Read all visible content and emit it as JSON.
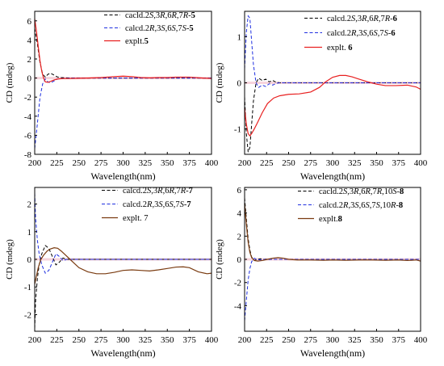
{
  "figure": {
    "colors": {
      "black": "#000000",
      "blue": "#1f2fe0",
      "red": "#e82020",
      "brown": "#7a3b10",
      "axis": "#000000"
    }
  },
  "chart_data": [
    {
      "id": "A",
      "type": "line",
      "xlabel": "Wavelength(nm)",
      "ylabel": "CD (mdeg)",
      "xlim": [
        200,
        400
      ],
      "ylim": [
        -8,
        7
      ],
      "xticks": [
        "200",
        "225",
        "250",
        "275",
        "300",
        "325",
        "350",
        "375",
        "400"
      ],
      "yticks": [
        "-8",
        "-6",
        "-4",
        "-2",
        "0",
        "2",
        "4",
        "6"
      ],
      "legend": "top-right",
      "series": [
        {
          "name": "cacld.2S,3R,6R,7R-5",
          "name_parts": [
            [
              "cacld.2",
              ""
            ],
            [
              "S",
              "i"
            ],
            [
              ",3",
              ""
            ],
            [
              "R",
              "i"
            ],
            [
              ",6",
              ""
            ],
            [
              "R",
              "i"
            ],
            [
              ",7",
              ""
            ],
            [
              "R",
              "i"
            ],
            [
              "-",
              ""
            ],
            [
              "5",
              "b"
            ]
          ],
          "color": "#000000",
          "style": "dashed",
          "x": [
            200,
            203,
            206,
            209,
            212,
            215,
            218,
            222,
            226,
            230,
            240,
            260,
            280,
            300,
            320,
            340,
            360,
            380,
            400
          ],
          "y": [
            5.2,
            3.6,
            1.6,
            0.4,
            0.1,
            0.4,
            0.5,
            0.3,
            0.1,
            0.05,
            0,
            0,
            0,
            0,
            0,
            0,
            0,
            0,
            0
          ]
        },
        {
          "name": "calcd.2R,3S,6S,7S-5",
          "name_parts": [
            [
              "calcd.2",
              ""
            ],
            [
              "R",
              "i"
            ],
            [
              ",3",
              ""
            ],
            [
              "S",
              "i"
            ],
            [
              ",6",
              ""
            ],
            [
              "S",
              "i"
            ],
            [
              ",7",
              ""
            ],
            [
              "S",
              "i"
            ],
            [
              "-",
              ""
            ],
            [
              "5",
              "b"
            ]
          ],
          "color": "#1f2fe0",
          "style": "dashed",
          "x": [
            200,
            203,
            206,
            209,
            212,
            215,
            218,
            222,
            226,
            230,
            240,
            260,
            280,
            300,
            320,
            340,
            360,
            380,
            400
          ],
          "y": [
            -7.4,
            -4.8,
            -2.0,
            -0.6,
            -0.1,
            -0.4,
            -0.5,
            -0.3,
            -0.1,
            -0.05,
            0,
            0,
            0,
            0,
            0,
            0,
            0,
            0,
            0
          ]
        },
        {
          "name": "explt.5",
          "name_parts": [
            [
              "explt.",
              ""
            ],
            [
              "5",
              "b"
            ]
          ],
          "color": "#e82020",
          "style": "solid",
          "x": [
            200,
            202,
            204,
            206,
            208,
            210,
            212,
            215,
            218,
            222,
            226,
            232,
            240,
            250,
            260,
            275,
            290,
            300,
            310,
            320,
            330,
            340,
            350,
            360,
            375,
            390,
            400
          ],
          "y": [
            6.2,
            4.9,
            3.3,
            1.8,
            0.7,
            0.0,
            -0.4,
            -0.45,
            -0.35,
            -0.2,
            -0.1,
            -0.05,
            -0.05,
            -0.02,
            0.0,
            0.05,
            0.15,
            0.2,
            0.15,
            0.05,
            0.02,
            0.05,
            0.05,
            0.1,
            0.1,
            0.0,
            -0.05
          ]
        }
      ]
    },
    {
      "id": "B",
      "type": "line",
      "xlabel": "Wavelength(nm)",
      "ylabel": "CD (mdeg)",
      "xlim": [
        200,
        400
      ],
      "ylim": [
        -1.55,
        1.55
      ],
      "xticks": [
        "200",
        "225",
        "250",
        "275",
        "300",
        "325",
        "350",
        "375",
        "400"
      ],
      "yticks": [
        "-1",
        "0",
        "1"
      ],
      "legend": "top-right",
      "series": [
        {
          "name": "calcd.2S,3R,6R,7R-6",
          "name_parts": [
            [
              "calcd.2",
              ""
            ],
            [
              "S",
              "i"
            ],
            [
              ",3",
              ""
            ],
            [
              "R",
              "i"
            ],
            [
              ",6",
              ""
            ],
            [
              "R",
              "i"
            ],
            [
              ",7",
              ""
            ],
            [
              "R",
              "i"
            ],
            [
              "-",
              ""
            ],
            [
              "6",
              "b"
            ]
          ],
          "color": "#000000",
          "style": "dashed",
          "x": [
            200,
            202,
            204,
            206,
            208,
            210,
            213,
            216,
            220,
            224,
            228,
            232,
            236,
            240,
            260,
            300,
            340,
            400
          ],
          "y": [
            -0.3,
            -1.1,
            -1.5,
            -1.4,
            -0.9,
            -0.4,
            0.0,
            0.1,
            0.05,
            0.08,
            0.02,
            0.05,
            0.01,
            0,
            0,
            0,
            0,
            0
          ]
        },
        {
          "name": "calcd.2R,3S,6S,7S-6",
          "name_parts": [
            [
              "calcd.2",
              ""
            ],
            [
              "R",
              "i"
            ],
            [
              ",3",
              ""
            ],
            [
              "S",
              "i"
            ],
            [
              ",6",
              ""
            ],
            [
              "S",
              "i"
            ],
            [
              ",7",
              ""
            ],
            [
              "S",
              "i"
            ],
            [
              "-",
              ""
            ],
            [
              "6",
              "b"
            ]
          ],
          "color": "#1f2fe0",
          "style": "dashed",
          "x": [
            200,
            202,
            204,
            206,
            208,
            210,
            213,
            216,
            220,
            224,
            228,
            232,
            236,
            240,
            260,
            300,
            340,
            400
          ],
          "y": [
            0.3,
            1.1,
            1.45,
            1.4,
            0.9,
            0.4,
            0.0,
            -0.1,
            -0.05,
            -0.08,
            -0.02,
            -0.05,
            -0.01,
            0,
            0,
            0,
            0,
            0
          ]
        },
        {
          "name": "explt. 6",
          "name_parts": [
            [
              "explt. ",
              ""
            ],
            [
              "6",
              "b"
            ]
          ],
          "color": "#e82020",
          "style": "solid",
          "x": [
            200,
            202,
            204,
            206,
            208,
            211,
            215,
            220,
            226,
            233,
            240,
            250,
            262,
            275,
            285,
            292,
            300,
            308,
            315,
            322,
            330,
            340,
            350,
            360,
            372,
            385,
            395,
            400
          ],
          "y": [
            -0.55,
            -0.9,
            -1.1,
            -1.15,
            -1.1,
            -1.0,
            -0.85,
            -0.65,
            -0.45,
            -0.33,
            -0.28,
            -0.25,
            -0.24,
            -0.2,
            -0.1,
            0.02,
            0.12,
            0.16,
            0.16,
            0.13,
            0.08,
            0.02,
            -0.03,
            -0.06,
            -0.06,
            -0.05,
            -0.09,
            -0.14
          ]
        }
      ]
    },
    {
      "id": "C",
      "type": "line",
      "xlabel": "Wavelength(nm)",
      "ylabel": "CD (mdeg)",
      "xlim": [
        200,
        400
      ],
      "ylim": [
        -2.6,
        2.6
      ],
      "xticks": [
        "200",
        "225",
        "250",
        "275",
        "300",
        "325",
        "350",
        "375",
        "400"
      ],
      "yticks": [
        "-2",
        "-1",
        "0",
        "1",
        "2"
      ],
      "legend": "top-right",
      "series": [
        {
          "name": "calcd.2S,3R,6R,7R-7",
          "name_parts": [
            [
              "calcd.2",
              ""
            ],
            [
              "S",
              "i"
            ],
            [
              ",3",
              ""
            ],
            [
              "R",
              "i"
            ],
            [
              ",6",
              ""
            ],
            [
              "R",
              "i"
            ],
            [
              ",7",
              ""
            ],
            [
              "R",
              "i"
            ],
            [
              "-",
              ""
            ],
            [
              "7",
              "b"
            ]
          ],
          "color": "#000000",
          "style": "dashed",
          "x": [
            200,
            201,
            203,
            205,
            208,
            212,
            216,
            220,
            224,
            228,
            232,
            236,
            240,
            250,
            300,
            350,
            400
          ],
          "y": [
            -2.5,
            -1.5,
            -0.7,
            -0.2,
            0.2,
            0.5,
            0.4,
            0.1,
            -0.2,
            -0.1,
            0.05,
            0.0,
            0.0,
            0,
            0,
            0,
            0
          ]
        },
        {
          "name": "calcd.2R,3S,6S,7S-7",
          "name_parts": [
            [
              "calcd.2",
              ""
            ],
            [
              "R",
              "i"
            ],
            [
              ",3",
              ""
            ],
            [
              "S",
              "i"
            ],
            [
              ",6",
              ""
            ],
            [
              "S",
              "i"
            ],
            [
              ",7",
              ""
            ],
            [
              "S",
              "i"
            ],
            [
              "-",
              ""
            ],
            [
              "7",
              "b"
            ]
          ],
          "color": "#1f2fe0",
          "style": "dashed",
          "x": [
            200,
            201,
            203,
            205,
            208,
            212,
            216,
            220,
            224,
            228,
            232,
            236,
            240,
            250,
            300,
            350,
            400
          ],
          "y": [
            2.4,
            1.5,
            0.7,
            0.2,
            -0.2,
            -0.5,
            -0.4,
            -0.1,
            0.2,
            0.1,
            -0.05,
            0.0,
            0.0,
            0,
            0,
            0,
            0
          ]
        },
        {
          "name": "explt. 7",
          "name_parts": [
            [
              "explt. 7",
              ""
            ]
          ],
          "color": "#7a3b10",
          "style": "solid",
          "x": [
            200,
            202,
            204,
            207,
            210,
            214,
            218,
            222,
            226,
            230,
            235,
            240,
            245,
            250,
            260,
            270,
            280,
            290,
            300,
            310,
            320,
            330,
            340,
            350,
            360,
            368,
            375,
            385,
            395,
            400
          ],
          "y": [
            -0.9,
            -0.6,
            -0.3,
            0.0,
            0.15,
            0.3,
            0.38,
            0.42,
            0.4,
            0.3,
            0.15,
            0.0,
            -0.15,
            -0.3,
            -0.45,
            -0.52,
            -0.52,
            -0.47,
            -0.4,
            -0.38,
            -0.4,
            -0.42,
            -0.38,
            -0.33,
            -0.28,
            -0.27,
            -0.3,
            -0.45,
            -0.52,
            -0.5
          ]
        }
      ]
    },
    {
      "id": "D",
      "type": "line",
      "xlabel": "Wavelength(nm)",
      "ylabel": "CD (mdeg)",
      "xlim": [
        200,
        400
      ],
      "ylim": [
        -6.2,
        6.2
      ],
      "xticks": [
        "200",
        "225",
        "250",
        "275",
        "300",
        "325",
        "350",
        "375",
        "400"
      ],
      "yticks": [
        "-4",
        "-2",
        "0",
        "2",
        "4",
        "6"
      ],
      "legend": "top-right",
      "series": [
        {
          "name": "cacld.2S,3R,6R,7R,10S-8",
          "name_parts": [
            [
              "cacld.2",
              ""
            ],
            [
              "S",
              "i"
            ],
            [
              ",3",
              ""
            ],
            [
              "R",
              "i"
            ],
            [
              ",6",
              ""
            ],
            [
              "R",
              "i"
            ],
            [
              ",7",
              ""
            ],
            [
              "R",
              "i"
            ],
            [
              ",10",
              ""
            ],
            [
              "S",
              "i"
            ],
            [
              "-",
              ""
            ],
            [
              "8",
              "b"
            ]
          ],
          "color": "#000000",
          "style": "dashed",
          "x": [
            200,
            202,
            204,
            206,
            208,
            211,
            214,
            218,
            222,
            226,
            230,
            240,
            260,
            300,
            350,
            400
          ],
          "y": [
            5.3,
            3.5,
            1.8,
            0.8,
            0.2,
            -0.1,
            0.0,
            0.05,
            0.0,
            0.02,
            0,
            0,
            0,
            0,
            0,
            0
          ]
        },
        {
          "name": "calcd.2R,3S,6S,7S,10R-8",
          "name_parts": [
            [
              "calcd.2",
              ""
            ],
            [
              "R",
              "i"
            ],
            [
              ",3",
              ""
            ],
            [
              "S",
              "i"
            ],
            [
              ",6",
              ""
            ],
            [
              "S",
              "i"
            ],
            [
              ",7",
              ""
            ],
            [
              "S",
              "i"
            ],
            [
              ",10",
              ""
            ],
            [
              "R",
              "i"
            ],
            [
              "-",
              ""
            ],
            [
              "8",
              "b"
            ]
          ],
          "color": "#1f2fe0",
          "style": "dashed",
          "x": [
            200,
            202,
            204,
            206,
            208,
            211,
            214,
            218,
            222,
            226,
            230,
            240,
            260,
            300,
            350,
            400
          ],
          "y": [
            -5.3,
            -3.5,
            -1.8,
            -0.8,
            -0.2,
            0.1,
            0.0,
            -0.05,
            0.0,
            -0.02,
            0,
            0,
            0,
            0,
            0,
            0
          ]
        },
        {
          "name": "explt.8",
          "name_parts": [
            [
              "explt.",
              ""
            ],
            [
              "8",
              "b"
            ]
          ],
          "color": "#7a3b10",
          "style": "solid",
          "x": [
            200,
            202,
            204,
            206,
            208,
            211,
            215,
            220,
            226,
            232,
            238,
            244,
            250,
            260,
            275,
            290,
            300,
            315,
            330,
            345,
            360,
            375,
            385,
            395,
            400
          ],
          "y": [
            4.8,
            3.0,
            1.5,
            0.6,
            0.15,
            -0.1,
            -0.15,
            -0.1,
            0.0,
            0.1,
            0.15,
            0.1,
            0.0,
            -0.05,
            -0.05,
            -0.08,
            -0.05,
            -0.08,
            -0.05,
            -0.05,
            -0.08,
            -0.05,
            -0.1,
            -0.05,
            -0.15
          ]
        }
      ]
    }
  ]
}
